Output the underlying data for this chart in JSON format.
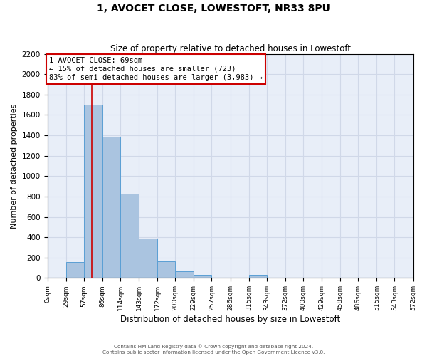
{
  "title": "1, AVOCET CLOSE, LOWESTOFT, NR33 8PU",
  "subtitle": "Size of property relative to detached houses in Lowestoft",
  "xlabel": "Distribution of detached houses by size in Lowestoft",
  "ylabel": "Number of detached properties",
  "bar_edges": [
    0,
    29,
    57,
    86,
    114,
    143,
    172,
    200,
    229,
    257,
    286,
    315,
    343,
    372,
    400,
    429,
    458,
    486,
    515,
    543,
    572
  ],
  "bar_heights": [
    0,
    155,
    1700,
    1390,
    830,
    385,
    165,
    65,
    30,
    0,
    0,
    30,
    0,
    0,
    0,
    0,
    0,
    0,
    0,
    0
  ],
  "bar_color": "#aac4e0",
  "bar_edgecolor": "#5a9fd4",
  "vline_x": 69,
  "vline_color": "#cc0000",
  "ylim": [
    0,
    2200
  ],
  "yticks": [
    0,
    200,
    400,
    600,
    800,
    1000,
    1200,
    1400,
    1600,
    1800,
    2000,
    2200
  ],
  "xtick_labels": [
    "0sqm",
    "29sqm",
    "57sqm",
    "86sqm",
    "114sqm",
    "143sqm",
    "172sqm",
    "200sqm",
    "229sqm",
    "257sqm",
    "286sqm",
    "315sqm",
    "343sqm",
    "372sqm",
    "400sqm",
    "429sqm",
    "458sqm",
    "486sqm",
    "515sqm",
    "543sqm",
    "572sqm"
  ],
  "annotation_title": "1 AVOCET CLOSE: 69sqm",
  "annotation_line1": "← 15% of detached houses are smaller (723)",
  "annotation_line2": "83% of semi-detached houses are larger (3,983) →",
  "annotation_box_color": "#ffffff",
  "annotation_box_edgecolor": "#cc0000",
  "grid_color": "#d0d8e8",
  "bg_color": "#e8eef8",
  "footer_line1": "Contains HM Land Registry data © Crown copyright and database right 2024.",
  "footer_line2": "Contains public sector information licensed under the Open Government Licence v3.0."
}
